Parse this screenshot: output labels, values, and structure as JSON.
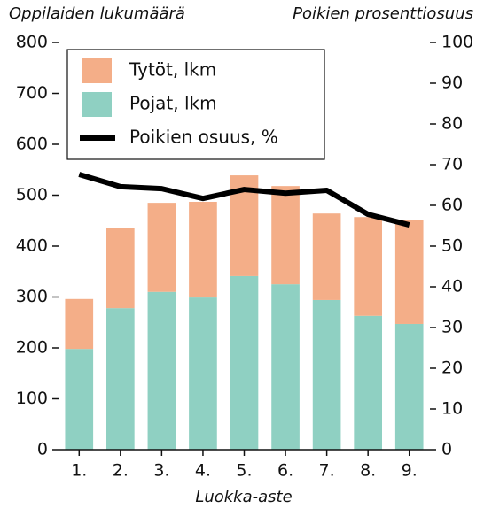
{
  "chart_data": {
    "type": "bar",
    "y_label": "Oppilaiden lukumäärä",
    "y2_label": "Poikien prosenttiosuus",
    "x_label": "Luokka-aste",
    "categories": [
      "1.",
      "2.",
      "3.",
      "4.",
      "5.",
      "6.",
      "7.",
      "8.",
      "9."
    ],
    "series": [
      {
        "name": "Tytöt, lkm",
        "type": "bar",
        "color": "#f4ae88",
        "values": [
          98,
          157,
          175,
          188,
          198,
          193,
          170,
          194,
          205
        ]
      },
      {
        "name": "Pojat, lkm",
        "type": "bar",
        "color": "#8fd0c2",
        "values": [
          198,
          278,
          310,
          299,
          341,
          325,
          294,
          263,
          247
        ]
      },
      {
        "name": "Poikien osuus, %",
        "type": "line",
        "axis": "y2",
        "color": "#000000",
        "values": [
          67.6,
          64.6,
          64.1,
          61.7,
          63.9,
          63.0,
          63.7,
          57.8,
          55.2
        ]
      }
    ],
    "stacked": true,
    "ylim": [
      0,
      800
    ],
    "yticks": [
      0,
      100,
      200,
      300,
      400,
      500,
      600,
      700,
      800
    ],
    "y2lim": [
      0,
      100
    ],
    "y2ticks": [
      0,
      10,
      20,
      30,
      40,
      50,
      60,
      70,
      80,
      90,
      100
    ],
    "legend": "top-left"
  }
}
